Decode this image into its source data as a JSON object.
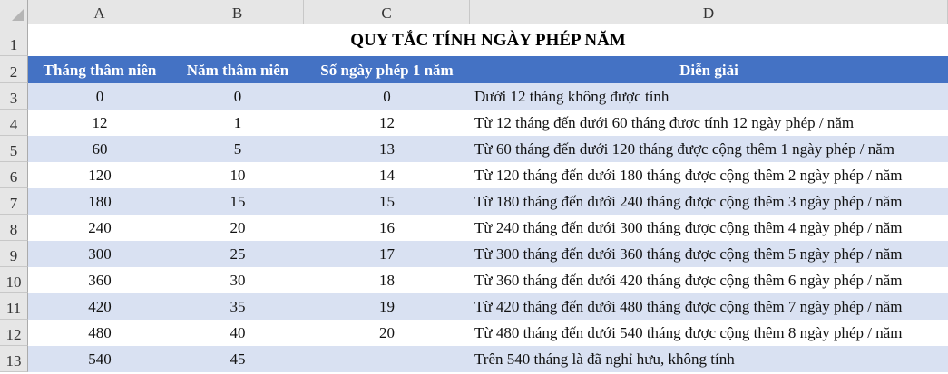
{
  "columns": [
    "A",
    "B",
    "C",
    "D"
  ],
  "title": "QUY TẮC TÍNH NGÀY PHÉP NĂM",
  "headers": [
    "Tháng thâm niên",
    "Năm thâm niên",
    "Số ngày phép 1 năm",
    "Diễn giải"
  ],
  "rows": [
    [
      "0",
      "0",
      "0",
      "Dưới 12 tháng không được tính"
    ],
    [
      "12",
      "1",
      "12",
      "Từ 12 tháng đến dưới 60 tháng được tính 12 ngày phép / năm"
    ],
    [
      "60",
      "5",
      "13",
      "Từ 60 tháng đến dưới 120 tháng được cộng thêm 1 ngày phép / năm"
    ],
    [
      "120",
      "10",
      "14",
      "Từ 120 tháng đến dưới 180 tháng được cộng thêm 2 ngày phép / năm"
    ],
    [
      "180",
      "15",
      "15",
      "Từ 180 tháng đến dưới 240 tháng được cộng thêm 3 ngày phép / năm"
    ],
    [
      "240",
      "20",
      "16",
      "Từ 240 tháng đến dưới 300 tháng được cộng thêm 4 ngày phép / năm"
    ],
    [
      "300",
      "25",
      "17",
      "Từ 300 tháng đến dưới 360 tháng được cộng thêm 5 ngày phép / năm"
    ],
    [
      "360",
      "30",
      "18",
      "Từ 360 tháng đến dưới 420 tháng được cộng thêm 6 ngày phép / năm"
    ],
    [
      "420",
      "35",
      "19",
      "Từ 420 tháng đến dưới 480 tháng được cộng thêm 7 ngày phép / năm"
    ],
    [
      "480",
      "40",
      "20",
      "Từ 480 tháng đến dưới 540 tháng được cộng thêm 8 ngày phép / năm"
    ],
    [
      "540",
      "45",
      "",
      "Trên 540 tháng là đã nghỉ hưu, không tính"
    ]
  ],
  "row_numbers": [
    "1",
    "2",
    "3",
    "4",
    "5",
    "6",
    "7",
    "8",
    "9",
    "10",
    "11",
    "12",
    "13"
  ],
  "colors": {
    "header_fill": "#4472c4",
    "band_fill": "#d9e1f2"
  }
}
